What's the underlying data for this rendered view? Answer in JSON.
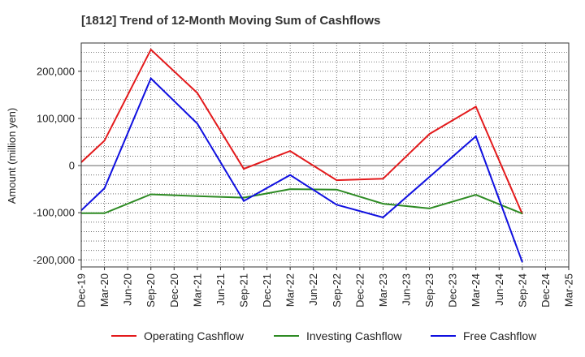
{
  "chart_data": {
    "type": "line",
    "title": "[1812]  Trend of 12-Month Moving Sum of Cashflows",
    "xlabel": "",
    "ylabel": "Amount (million yen)",
    "ylim": [
      -215000,
      260000
    ],
    "yticks": [
      200000,
      100000,
      0,
      -100000,
      -200000
    ],
    "ytick_labels": [
      "200,000",
      "100,000",
      "0",
      "-100,000",
      "-200,000"
    ],
    "categories": [
      "Dec-19",
      "Mar-20",
      "Jun-20",
      "Sep-20",
      "Dec-20",
      "Mar-21",
      "Jun-21",
      "Sep-21",
      "Dec-21",
      "Mar-22",
      "Jun-22",
      "Sep-22",
      "Dec-22",
      "Mar-23",
      "Jun-23",
      "Sep-23",
      "Dec-23",
      "Mar-24",
      "Jun-24",
      "Sep-24",
      "Dec-24",
      "Mar-25"
    ],
    "grid": true,
    "legend_position": "bottom",
    "series": [
      {
        "name": "Operating Cashflow",
        "color": "#e31a1c",
        "values": [
          7000,
          53000,
          null,
          246000,
          null,
          154000,
          null,
          -7000,
          null,
          31000,
          null,
          -31000,
          null,
          -28000,
          null,
          67000,
          null,
          125000,
          null,
          -103000,
          null,
          null
        ]
      },
      {
        "name": "Investing Cashflow",
        "color": "#2e8b24",
        "values": [
          -101000,
          -101000,
          null,
          -61000,
          null,
          -65000,
          null,
          -68000,
          null,
          -50000,
          null,
          -51000,
          null,
          -81000,
          null,
          -91000,
          null,
          -62000,
          null,
          -102000,
          null,
          null
        ]
      },
      {
        "name": "Free Cashflow",
        "color": "#1010e0",
        "values": [
          -95000,
          -48000,
          null,
          185000,
          null,
          89000,
          null,
          -75000,
          null,
          -20000,
          null,
          -83000,
          null,
          -110000,
          null,
          -24000,
          null,
          62000,
          null,
          -205000,
          null,
          null
        ]
      }
    ]
  }
}
